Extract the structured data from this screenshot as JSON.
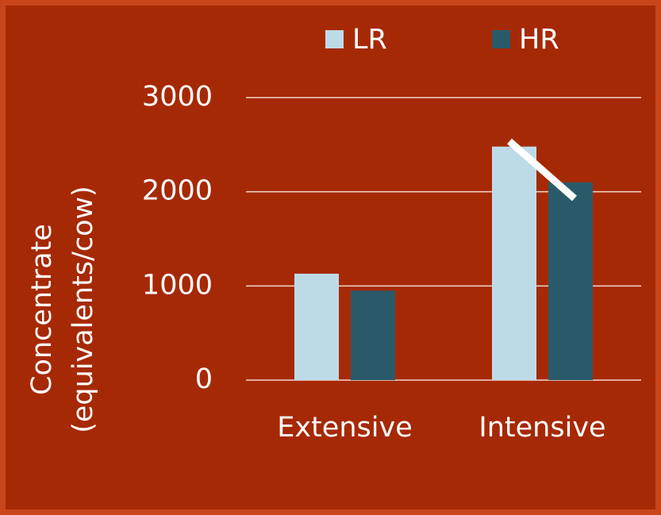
{
  "chart_data": {
    "type": "bar",
    "y_label": [
      "Concentrate",
      "(equivalents/cow)"
    ],
    "categories": [
      "Extensive",
      "Intensive"
    ],
    "series": [
      {
        "name": "LR",
        "color": "#bddbe7",
        "values": [
          1130,
          2480
        ]
      },
      {
        "name": "HR",
        "color": "#2a5a6a",
        "values": [
          950,
          2100
        ]
      }
    ],
    "ylim": [
      0,
      3000
    ],
    "yticks": [
      0,
      1000,
      2000,
      3000
    ],
    "grid": true,
    "legend": "top"
  }
}
